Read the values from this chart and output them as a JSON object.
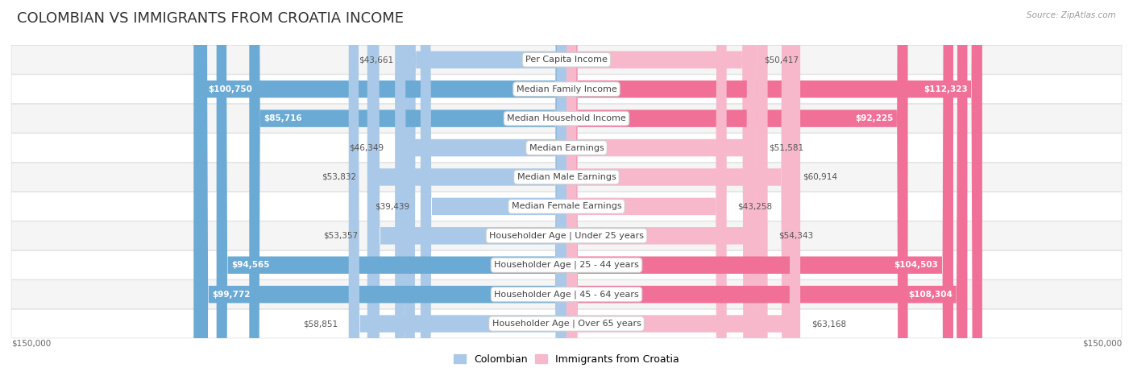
{
  "title": "COLOMBIAN VS IMMIGRANTS FROM CROATIA INCOME",
  "source": "Source: ZipAtlas.com",
  "categories": [
    "Per Capita Income",
    "Median Family Income",
    "Median Household Income",
    "Median Earnings",
    "Median Male Earnings",
    "Median Female Earnings",
    "Householder Age | Under 25 years",
    "Householder Age | 25 - 44 years",
    "Householder Age | 45 - 64 years",
    "Householder Age | Over 65 years"
  ],
  "colombian_values": [
    43661,
    100750,
    85716,
    46349,
    53832,
    39439,
    53357,
    94565,
    99772,
    58851
  ],
  "croatia_values": [
    50417,
    112323,
    92225,
    51581,
    60914,
    43258,
    54343,
    104503,
    108304,
    63168
  ],
  "colombian_color_light": "#aac9e8",
  "colombian_color_dark": "#6aaad4",
  "croatia_color_light": "#f7b8cc",
  "croatia_color_dark": "#f07098",
  "colombian_label": "Colombian",
  "croatia_label": "Immigrants from Croatia",
  "max_value": 150000,
  "bar_height": 0.58,
  "row_bg_light": "#f5f5f5",
  "row_bg_dark": "#ffffff",
  "row_border": "#dddddd",
  "title_fontsize": 13,
  "label_fontsize": 8,
  "value_fontsize": 7.5,
  "axis_label": "$150,000",
  "background_color": "#ffffff",
  "col_inside_threshold": 65000,
  "cro_inside_threshold": 65000
}
